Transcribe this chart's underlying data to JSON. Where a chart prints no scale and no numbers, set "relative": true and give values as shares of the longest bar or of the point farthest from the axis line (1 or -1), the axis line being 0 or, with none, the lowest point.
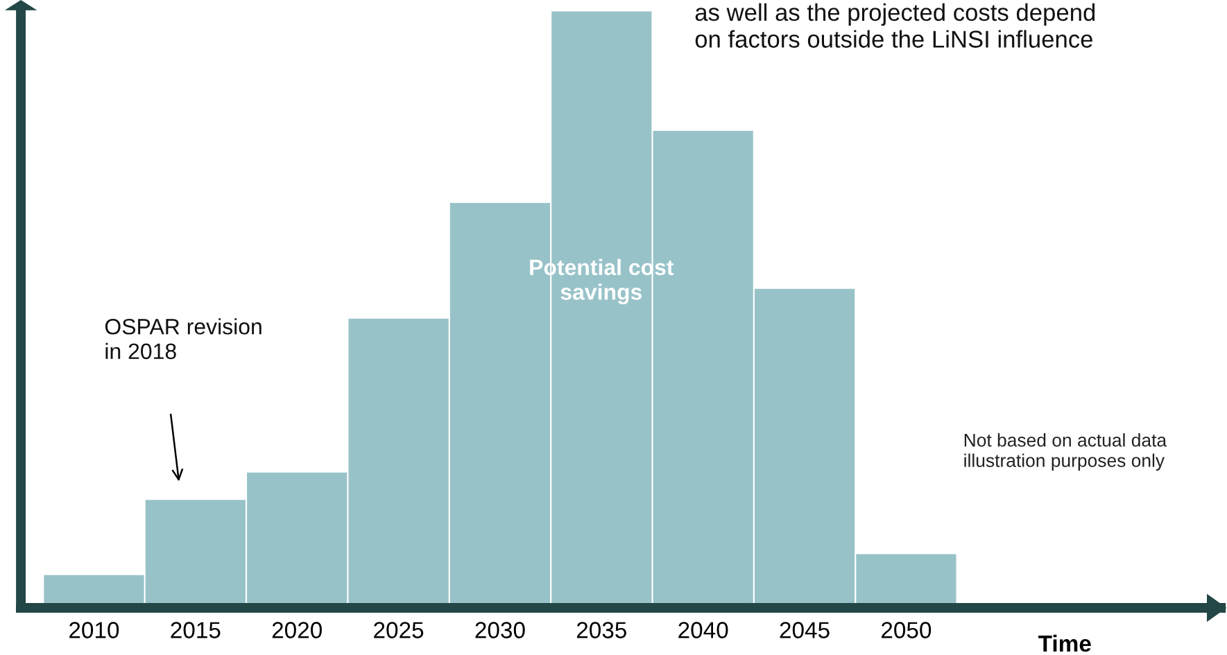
{
  "chart_data": {
    "type": "bar",
    "relative": true,
    "xlabel": "Time",
    "color": "#97c2c8",
    "categories": [
      "2010",
      "2015",
      "2020",
      "2025",
      "2030",
      "2035",
      "2040",
      "2045",
      "2050"
    ],
    "values": [
      0.055,
      0.181,
      0.227,
      0.485,
      0.679,
      1,
      0.8,
      0.535,
      0.09
    ],
    "tick_labels": "x",
    "annotations": [
      "as well as the projected costs depend\non factors outside the LiNSI influence",
      "Potential cost\nsavings",
      "OSPAR revision\nin 2018",
      "Not based on actual data\nillustration purposes only"
    ]
  }
}
